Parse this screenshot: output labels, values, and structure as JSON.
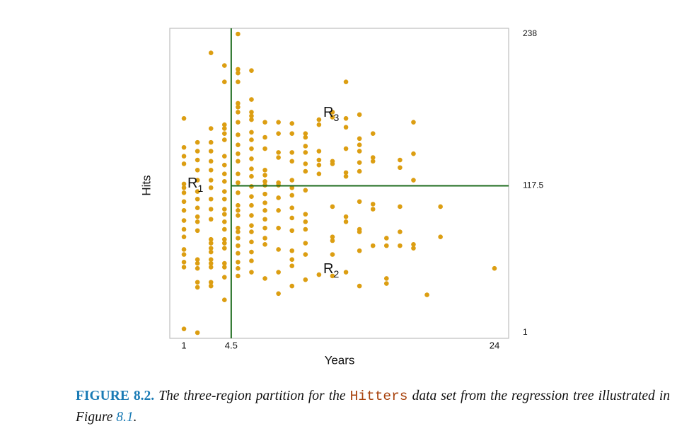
{
  "chart_data": {
    "type": "scatter",
    "x_label": "Years",
    "y_label": "Hits",
    "color": "#dc9e12",
    "split_color": "#1c6b1c",
    "grid": false,
    "xlim": [
      -0.05,
      25.05
    ],
    "ylim": [
      -3.5,
      242.5
    ],
    "xticks": [
      1,
      4.5,
      24
    ],
    "yticks": [
      1,
      117.5,
      238
    ],
    "annotations": [
      {
        "text": "R",
        "subscript": "1"
      },
      {
        "text": "R",
        "subscript": "3"
      },
      {
        "text": "R",
        "subscript": "2"
      }
    ],
    "x": [
      1,
      1,
      1,
      1,
      1,
      1,
      1,
      1,
      1,
      1,
      1,
      1,
      1,
      1,
      1,
      1,
      1,
      2,
      2,
      2,
      2,
      2,
      2,
      2,
      2,
      2,
      2,
      2,
      2,
      2,
      2,
      2,
      2,
      2,
      3,
      3,
      3,
      3,
      3,
      3,
      3,
      3,
      3,
      3,
      3,
      3,
      3,
      3,
      3,
      3,
      3,
      3,
      3,
      3,
      4,
      4,
      4,
      4,
      4,
      4,
      4,
      4,
      4,
      4,
      4,
      4,
      4,
      4,
      4,
      4,
      4,
      4,
      4,
      4,
      4,
      4,
      4,
      5,
      5,
      5,
      5,
      5,
      5,
      5,
      5,
      5,
      5,
      5,
      5,
      5,
      5,
      5,
      5,
      5,
      5,
      5,
      5,
      5,
      5,
      5,
      5,
      5,
      5,
      6,
      6,
      6,
      6,
      6,
      6,
      6,
      6,
      6,
      6,
      6,
      6,
      6,
      6,
      6,
      6,
      6,
      6,
      6,
      6,
      6,
      7,
      7,
      7,
      7,
      7,
      7,
      7,
      7,
      7,
      7,
      7,
      7,
      7,
      7,
      7,
      8,
      8,
      8,
      8,
      8,
      8,
      8,
      8,
      8,
      8,
      8,
      8,
      9,
      9,
      9,
      9,
      9,
      9,
      9,
      9,
      9,
      9,
      9,
      9,
      9,
      9,
      10,
      10,
      10,
      10,
      10,
      10,
      10,
      10,
      10,
      10,
      10,
      10,
      10,
      11,
      11,
      11,
      11,
      11,
      11,
      11,
      12,
      12,
      12,
      12,
      12,
      12,
      12,
      12,
      12,
      13,
      13,
      13,
      13,
      13,
      13,
      13,
      13,
      13,
      14,
      14,
      14,
      14,
      14,
      14,
      14,
      14,
      14,
      14,
      14,
      15,
      15,
      15,
      15,
      15,
      15,
      16,
      16,
      16,
      16,
      17,
      17,
      17,
      17,
      17,
      18,
      18,
      18,
      18,
      18,
      19,
      20,
      20,
      24
    ],
    "values": [
      171,
      148,
      141,
      135,
      119,
      116,
      112,
      105,
      98,
      90,
      83,
      77,
      67,
      63,
      57,
      53,
      4,
      152,
      145,
      138,
      130,
      122,
      113,
      107,
      100,
      93,
      89,
      82,
      59,
      56,
      52,
      41,
      37,
      1,
      223,
      163,
      152,
      145,
      137,
      130,
      122,
      116,
      107,
      99,
      91,
      75,
      72,
      68,
      65,
      59,
      56,
      53,
      41,
      38,
      213,
      200,
      166,
      163,
      159,
      154,
      141,
      134,
      127,
      121,
      113,
      107,
      99,
      95,
      89,
      83,
      75,
      72,
      68,
      56,
      53,
      45,
      27,
      238,
      210,
      207,
      200,
      183,
      180,
      176,
      168,
      158,
      150,
      143,
      137,
      127,
      120,
      112,
      102,
      98,
      94,
      84,
      81,
      76,
      70,
      64,
      57,
      52,
      46,
      209,
      186,
      176,
      173,
      170,
      160,
      154,
      147,
      139,
      131,
      125,
      117,
      109,
      102,
      94,
      86,
      81,
      73,
      65,
      58,
      49,
      168,
      156,
      147,
      130,
      126,
      121,
      118,
      111,
      104,
      98,
      91,
      84,
      76,
      71,
      44,
      168,
      159,
      144,
      140,
      120,
      118,
      108,
      98,
      84,
      67,
      49,
      32,
      167,
      159,
      144,
      137,
      122,
      116,
      110,
      100,
      92,
      82,
      66,
      59,
      54,
      38,
      159,
      156,
      149,
      144,
      135,
      129,
      114,
      95,
      89,
      83,
      72,
      63,
      43,
      170,
      166,
      145,
      138,
      134,
      127,
      47,
      176,
      172,
      137,
      135,
      101,
      77,
      74,
      63,
      46,
      200,
      171,
      164,
      147,
      128,
      125,
      93,
      89,
      49,
      174,
      155,
      150,
      145,
      136,
      129,
      105,
      83,
      81,
      66,
      38,
      159,
      140,
      137,
      103,
      99,
      70,
      76,
      70,
      44,
      40,
      138,
      132,
      101,
      81,
      70,
      168,
      143,
      122,
      71,
      68,
      31,
      101,
      77,
      52
    ]
  },
  "caption": {
    "label": "FIGURE 8.2.",
    "text": "The three-region partition for the",
    "code": "Hitters",
    "text2": "data set from the regression tree illustrated in Figure",
    "ref": "8.1",
    "end": "."
  }
}
